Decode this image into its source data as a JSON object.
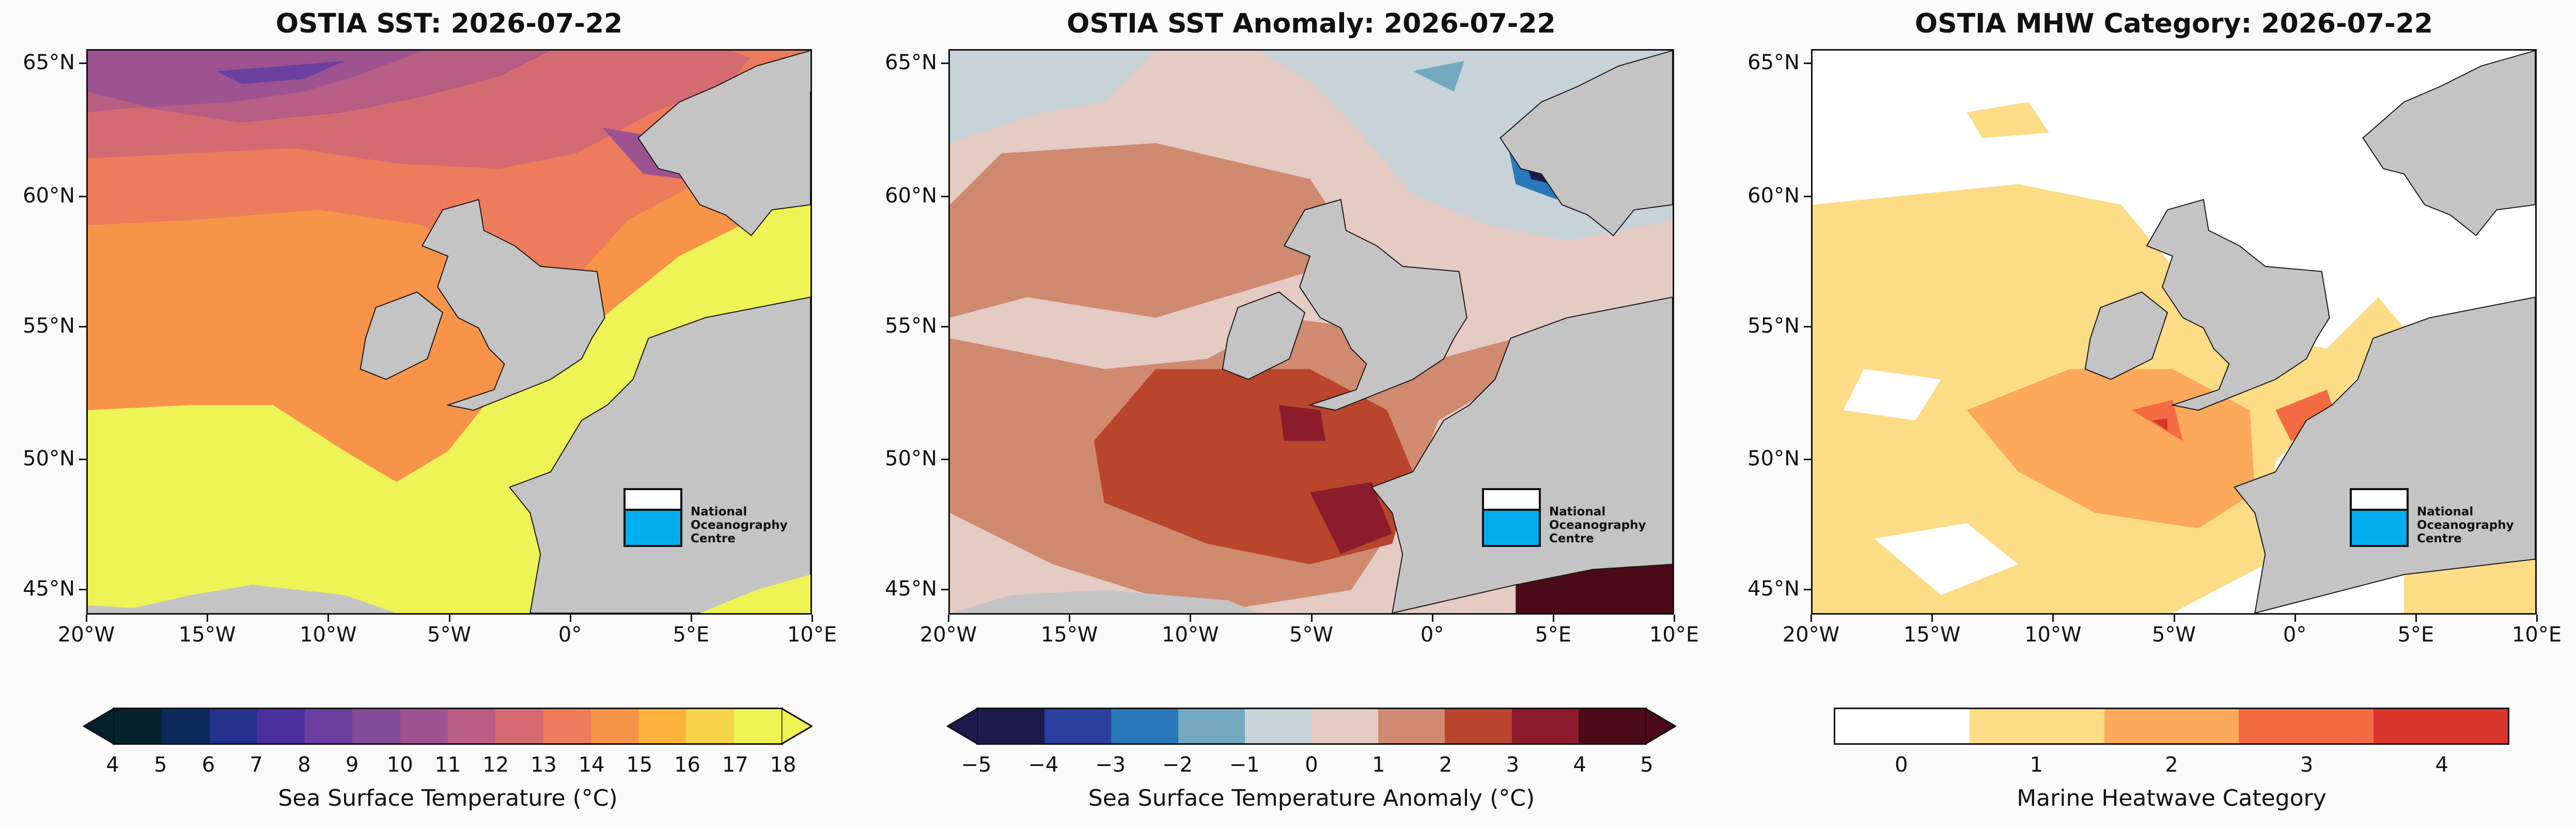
{
  "panels": [
    {
      "title": "OSTIA SST: 2026-07-22",
      "colorbar": {
        "label": "Sea Surface Temperature (°C)",
        "ticks": [
          "4",
          "5",
          "6",
          "7",
          "8",
          "9",
          "10",
          "11",
          "12",
          "13",
          "14",
          "15",
          "16",
          "17",
          "18"
        ],
        "colors": [
          "#04222e",
          "#0d2a5c",
          "#25318d",
          "#4b2f9c",
          "#6a3fa0",
          "#834c9a",
          "#9d5390",
          "#b85d83",
          "#d56b72",
          "#ec7c5c",
          "#f8944a",
          "#fbb33e",
          "#f6d44a",
          "#eef356"
        ],
        "extend": "both"
      }
    },
    {
      "title": "OSTIA SST Anomaly: 2026-07-22",
      "colorbar": {
        "label": "Sea Surface Temperature Anomaly (°C)",
        "ticks": [
          "−5",
          "−4",
          "−3",
          "−2",
          "−1",
          "0",
          "1",
          "2",
          "3",
          "4",
          "5"
        ],
        "colors": [
          "#1c1b4d",
          "#2a3f9e",
          "#2a78b9",
          "#72a9c0",
          "#c7d3d8",
          "#e4cbc4",
          "#cf8a70",
          "#b8452c",
          "#8c1b2c",
          "#4a0b16"
        ],
        "extend": "both"
      }
    },
    {
      "title": "OSTIA MHW Category: 2026-07-22",
      "colorbar": {
        "label": "Marine Heatwave Category",
        "ticks": [
          "0",
          "1",
          "2",
          "3",
          "4"
        ],
        "colors": [
          "#ffffff",
          "#fddc86",
          "#fca95b",
          "#f36b42",
          "#d9352b"
        ],
        "extend": "neither"
      }
    }
  ],
  "axes": {
    "lon_ticks": [
      "20°W",
      "15°W",
      "10°W",
      "5°W",
      "0°",
      "5°E",
      "10°E"
    ],
    "lat_ticks": [
      "65°N",
      "60°N",
      "55°N",
      "50°N",
      "45°N"
    ]
  },
  "logo": {
    "line1": "National",
    "line2": "Oceanography",
    "line3": "Centre"
  },
  "colors": {
    "land": "#c4c4c4",
    "coastline": "#1a1a1a"
  }
}
